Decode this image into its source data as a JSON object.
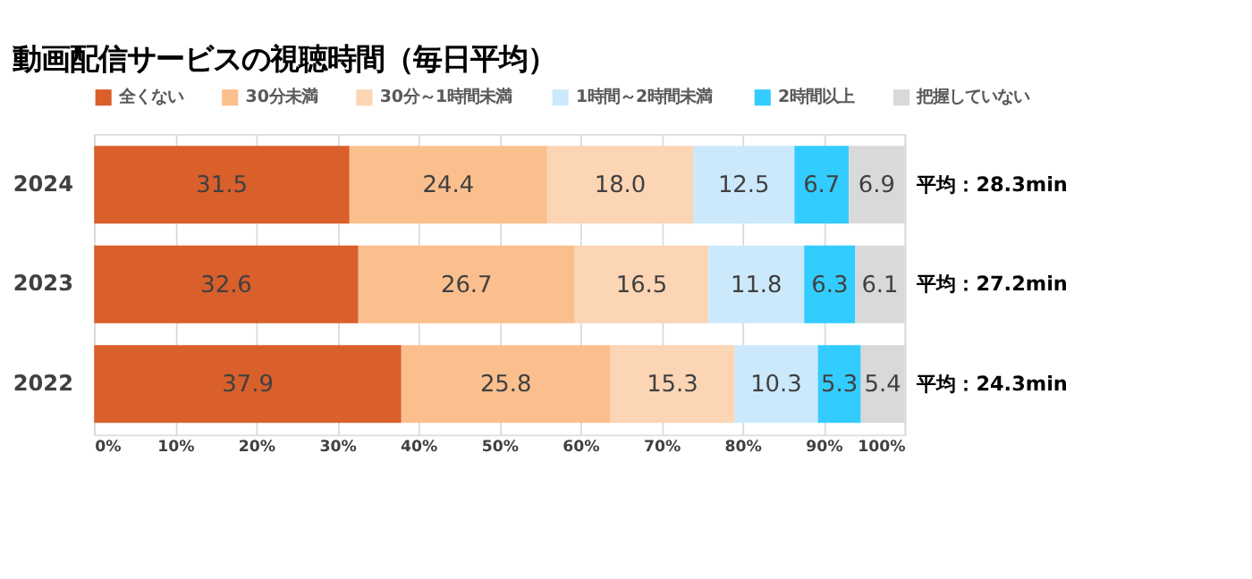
{
  "chart_data": {
    "type": "bar",
    "orientation": "horizontal",
    "stacked": true,
    "title": "動画配信サービスの視聴時間（毎日平均）",
    "categories": [
      "2024",
      "2023",
      "2022"
    ],
    "series": [
      {
        "name": "全くない",
        "color": "#d95f2b",
        "values": [
          31.5,
          32.6,
          37.9
        ],
        "value_labels": [
          "31.5",
          "32.6",
          "37.9"
        ]
      },
      {
        "name": "30分未満",
        "color": "#fbbf8e",
        "values": [
          24.4,
          26.7,
          25.8
        ],
        "value_labels": [
          "24.4",
          "26.7",
          "25.8"
        ]
      },
      {
        "name": "30分～1時間未満",
        "color": "#fcd5b5",
        "values": [
          18.0,
          16.5,
          15.3
        ],
        "value_labels": [
          "18.0",
          "16.5",
          "15.3"
        ]
      },
      {
        "name": "1時間～2時間未満",
        "color": "#cce9fb",
        "values": [
          12.5,
          11.8,
          10.3
        ],
        "value_labels": [
          "12.5",
          "11.8",
          "10.3"
        ]
      },
      {
        "name": "2時間以上",
        "color": "#33ccff",
        "values": [
          6.7,
          6.3,
          5.3
        ],
        "value_labels": [
          "6.7",
          "6.3",
          "5.3"
        ]
      },
      {
        "name": "把握していない",
        "color": "#d9d9d9",
        "values": [
          6.9,
          6.1,
          5.4
        ],
        "value_labels": [
          "6.9",
          "6.1",
          "5.4"
        ]
      }
    ],
    "xlim": [
      0,
      100
    ],
    "xticks": [
      {
        "value": 0,
        "label": "0%"
      },
      {
        "value": 10,
        "label": "10%"
      },
      {
        "value": 20,
        "label": "20%"
      },
      {
        "value": 30,
        "label": "30%"
      },
      {
        "value": 40,
        "label": "40%"
      },
      {
        "value": 50,
        "label": "50%"
      },
      {
        "value": 60,
        "label": "60%"
      },
      {
        "value": 70,
        "label": "70%"
      },
      {
        "value": 80,
        "label": "80%"
      },
      {
        "value": 90,
        "label": "90%"
      },
      {
        "value": 100,
        "label": "100%"
      }
    ],
    "grid": "x",
    "legend": "top",
    "annotations": [
      "平均：28.3min",
      "平均：27.2min",
      "平均：24.3min"
    ]
  }
}
